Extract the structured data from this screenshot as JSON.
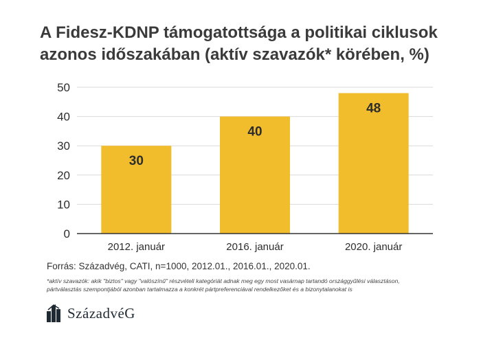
{
  "title_line1": "A Fidesz-KDNP támogatottsága a politikai ciklusok",
  "title_line2": "azonos időszakában (aktív szavazók* körében, %)",
  "source": "Forrás: Századvég, CATI, n=1000, 2012.01., 2016.01., 2020.01.",
  "footnote_line1": "*aktív szavazók: akik \"biztos\" vagy \"valószínű\" részvételi kategóriát adnak meg egy most vasárnap tartandó országgyűlési választáson,",
  "footnote_line2": "pártválasztás szempontjából azonban tartalmazza a konkrét pártpreferenciával rendelkezőket és a bizonytalanokat is",
  "logo_text": "SzázadvéG",
  "colors": {
    "bar": "#f2bd2c",
    "grid": "#d9d9d9",
    "axis": "#333333",
    "label": "#2d2d2d"
  },
  "chart_data": {
    "type": "bar",
    "categories": [
      "2012. január",
      "2016. január",
      "2020. január"
    ],
    "values": [
      30,
      40,
      48
    ],
    "ylim": [
      0,
      50
    ],
    "yticks": [
      0,
      10,
      20,
      30,
      40,
      50
    ],
    "grid": true,
    "data_labels": true
  }
}
